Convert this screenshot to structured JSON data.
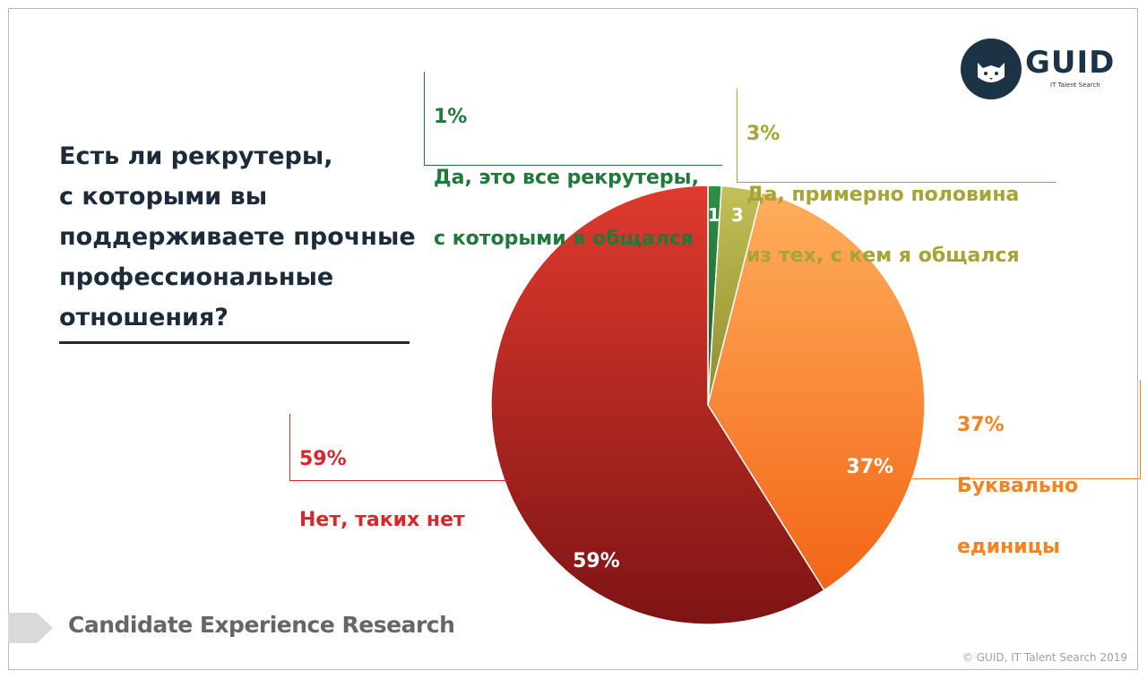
{
  "question": "Есть ли рекрутеры,\nс которыми вы\nподдерживаете прочные\nпрофессиональные\nотношения?",
  "brand": {
    "logo_text": "GUID",
    "tagline": "IT Talent Search",
    "icon": "cat-face-icon"
  },
  "footer": {
    "label": "Candidate Experience Research",
    "copyright": "© GUID, IT Talent Search 2019"
  },
  "colors": {
    "no": "#d6282c",
    "all": "#1f7a3a",
    "half": "#a6a437",
    "few": "#f58220",
    "text": "#1c2b3a"
  },
  "chart_data": {
    "type": "pie",
    "title": "",
    "slices": [
      {
        "label": "Да, это все рекрутеры, с которыми я общался",
        "value": 1,
        "value_label": "1",
        "percent_label": "1%",
        "callout_lines": [
          "Да, это все рекрутеры,",
          "с которыми я общался"
        ],
        "color": "#1f7a3a"
      },
      {
        "label": "Да, примерно половина из тех, с кем я общался",
        "value": 3,
        "value_label": "3",
        "percent_label": "3%",
        "callout_lines": [
          "Да, примерно половина",
          "из тех, с кем я общался"
        ],
        "color": "#a6a437"
      },
      {
        "label": "Буквально единицы",
        "value": 37,
        "value_label": "37%",
        "percent_label": "37%",
        "callout_lines": [
          "Буквально",
          "единицы"
        ],
        "color": "#f58220"
      },
      {
        "label": "Нет, таких нет",
        "value": 59,
        "value_label": "59%",
        "percent_label": "59%",
        "callout_lines": [
          "Нет, таких нет"
        ],
        "color": "#d6282c"
      }
    ]
  }
}
